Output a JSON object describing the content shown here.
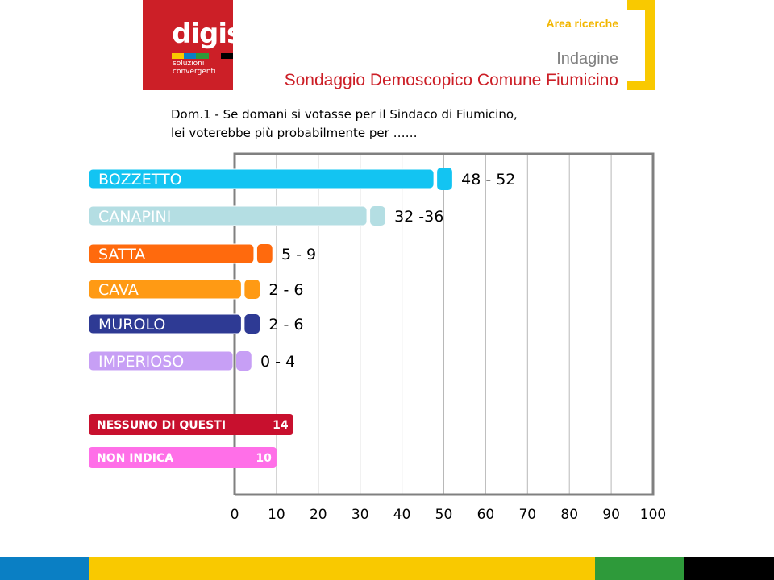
{
  "logo": {
    "wordmark": "digis",
    "tagline_line1": "soluzioni",
    "tagline_line2": "convergenti",
    "stripe_colors": [
      "#f9c900",
      "#0a7fc4",
      "#2e9a3a",
      "#cc1f27",
      "#000000"
    ]
  },
  "header": {
    "area": "Area ricerche",
    "indagine": "Indagine",
    "survey_title": "Sondaggio Demoscopico Comune Fiumicino"
  },
  "question": {
    "line1": "Dom.1 - Se domani si votasse per il Sindaco di Fiumicino,",
    "line2": "lei voterebbe più probabilmente per ……"
  },
  "chart_data": {
    "type": "bar",
    "orientation": "horizontal",
    "xlim": [
      0,
      100
    ],
    "x_ticks": [
      "0",
      "10",
      "20",
      "30",
      "40",
      "50",
      "60",
      "70",
      "80",
      "90",
      "100"
    ],
    "grid": true,
    "ranges": [
      {
        "category": "BOZZETTO",
        "low": 48,
        "high": 52,
        "label": "48 - 52",
        "color": "#13c4f2"
      },
      {
        "category": "CANAPINI",
        "low": 32,
        "high": 36,
        "label": "32  -36",
        "color": "#b4dee3"
      },
      {
        "category": "SATTA",
        "low": 5,
        "high": 9,
        "label": "5 - 9",
        "color": "#ff6a0d"
      },
      {
        "category": "CAVA",
        "low": 2,
        "high": 6,
        "label": "2 - 6",
        "color": "#ff9a14"
      },
      {
        "category": "MUROLO",
        "low": 2,
        "high": 6,
        "label": "2 - 6",
        "color": "#2e3a94"
      },
      {
        "category": "IMPERIOSO",
        "low": 0,
        "high": 4,
        "label": "0 - 4",
        "color": "#c79ff5"
      }
    ],
    "others": [
      {
        "category": "NESSUNO DI QUESTI",
        "value": 14,
        "label": "14",
        "color": "#c8102e"
      },
      {
        "category": "NON INDICA",
        "value": 10,
        "label": "10",
        "color": "#ff6fe8"
      }
    ]
  },
  "footer": {
    "colors": [
      "#0a7fc4",
      "#f9c900",
      "#2e9a3a",
      "#000000"
    ]
  }
}
